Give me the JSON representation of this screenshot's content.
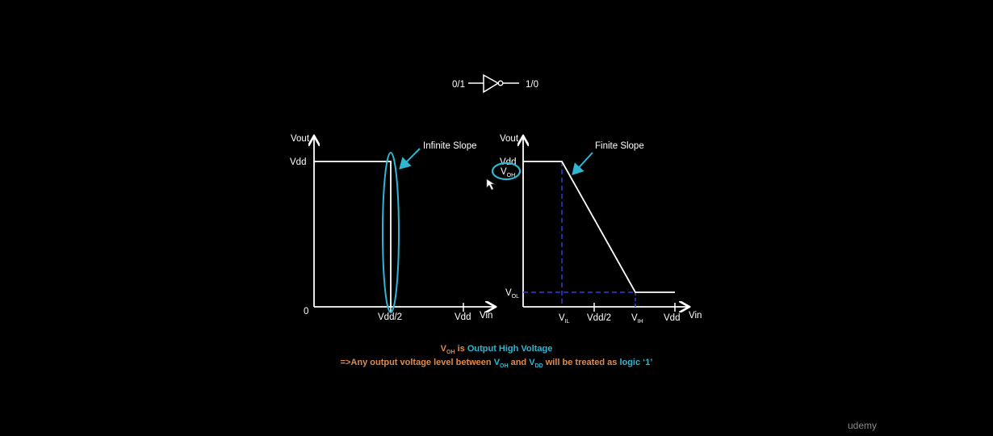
{
  "inverter": {
    "input_label": "0/1",
    "output_label": "1/0"
  },
  "ideal": {
    "y_axis_label": "Vout",
    "y_tick": "Vdd",
    "origin": "0",
    "x_ticks": [
      "Vdd/2",
      "Vdd"
    ],
    "x_axis_label": "Vin",
    "annotation": "Infinite Slope"
  },
  "real": {
    "y_axis_label": "Vout",
    "y_tick": "Vdd",
    "voh_main": "V",
    "voh_sub": "OH",
    "vol_main": "V",
    "vol_sub": "OL",
    "vil_main": "V",
    "vil_sub": "IL",
    "mid_tick": "Vdd/2",
    "vih_main": "V",
    "vih_sub": "IH",
    "vdd_tick": "Vdd",
    "x_axis_label": "Vin",
    "annotation": "Finite Slope"
  },
  "notes": {
    "line1": {
      "v": "V",
      "v_sub": "OH",
      "is": " is ",
      "term": "Output High Voltage"
    },
    "line2": {
      "prefix": "=>Any output voltage level between ",
      "v1": "V",
      "v1_sub": "OH",
      "and": " and ",
      "v2": "V",
      "v2_sub": "DD",
      "mid": " will be treated as ",
      "logic": "logic ‘1’"
    }
  },
  "brand": "udemy",
  "colors": {
    "background": "#000000",
    "curve": "#ffffff",
    "highlight": "#2fb6d3",
    "dashed": "#3a3ad8",
    "note_orange": "#e08a4a"
  }
}
